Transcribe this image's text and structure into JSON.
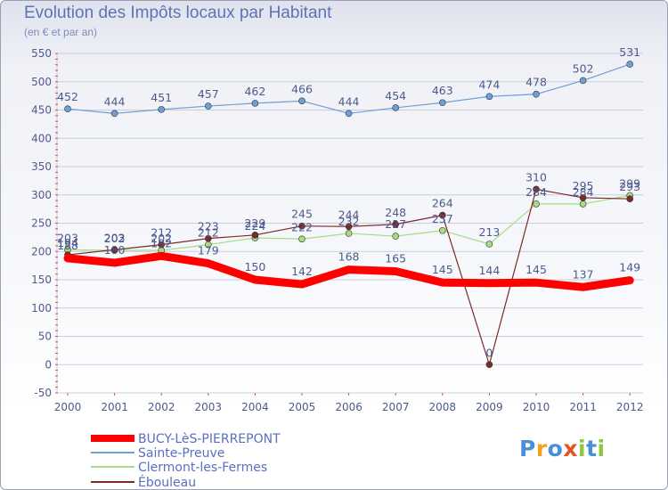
{
  "header": {
    "title": "Evolution des Impôts locaux par Habitant",
    "subtitle": "(en € et par an)"
  },
  "brand": {
    "logo_text": "Proxiti",
    "logo_letters": [
      "P",
      "r",
      "o",
      "x",
      "i",
      "t",
      "i"
    ]
  },
  "colors": {
    "text": "#4d5a8c",
    "grid": "#c8cde0",
    "axis_tick": "#e0445a",
    "bucy": "#ff0000",
    "sainte_preuve": "#6e9fd6",
    "clermont": "#a6dd84",
    "ebouleau": "#7b2a2a"
  },
  "chart_data": {
    "type": "line",
    "title": "Evolution des Impôts locaux par Habitant",
    "subtitle": "(en € et par an)",
    "xlabel": "",
    "ylabel": "",
    "categories": [
      "2000",
      "2001",
      "2002",
      "2003",
      "2004",
      "2005",
      "2006",
      "2007",
      "2008",
      "2009",
      "2010",
      "2011",
      "2012"
    ],
    "ylim": [
      -50,
      550
    ],
    "yticks": [
      -50,
      0,
      50,
      100,
      150,
      200,
      250,
      300,
      350,
      400,
      450,
      500,
      550
    ],
    "grid": true,
    "legend_position": "bottom-left",
    "series": [
      {
        "name": "BUCY-LèS-PIERREPONT",
        "color": "#ff0000",
        "values": [
          188,
          180,
          192,
          179,
          150,
          142,
          168,
          165,
          145,
          144,
          145,
          137,
          149
        ],
        "labels": [
          "",
          "",
          "",
          "179",
          "150",
          "142",
          "168",
          "165",
          "145",
          "144",
          "145",
          "137",
          "149"
        ]
      },
      {
        "name": "Sainte-Preuve",
        "color": "#6e9fd6",
        "values": [
          452,
          444,
          451,
          457,
          462,
          466,
          444,
          454,
          463,
          474,
          478,
          502,
          531
        ],
        "labels": [
          "452",
          "444",
          "451",
          "457",
          "462",
          "466",
          "444",
          "454",
          "463",
          "474",
          "478",
          "502",
          "531"
        ]
      },
      {
        "name": "Clermont-les-Fermes",
        "color": "#a6dd84",
        "values": [
          203,
          202,
          202,
          212,
          224,
          222,
          232,
          227,
          237,
          213,
          284,
          284,
          299
        ],
        "labels": [
          "203",
          "202",
          "202",
          "212",
          "224",
          "222",
          "232",
          "227",
          "237",
          "213",
          "284",
          "284",
          "299"
        ]
      },
      {
        "name": "Ébouleau",
        "color": "#7b2a2a",
        "values": [
          194,
          203,
          212,
          223,
          229,
          245,
          244,
          248,
          264,
          0,
          310,
          295,
          293
        ],
        "labels": [
          "194",
          "203",
          "212",
          "223",
          "229",
          "245",
          "244",
          "248",
          "264",
          "0",
          "310",
          "295",
          "293"
        ]
      }
    ],
    "extra_labels": [
      "188",
      "180",
      "192"
    ]
  }
}
